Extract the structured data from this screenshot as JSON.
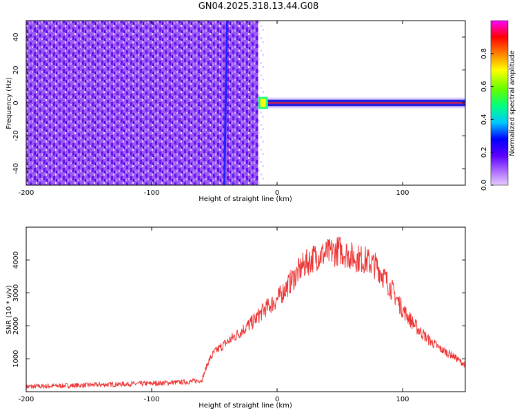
{
  "title": "GN04.2025.318.13.44.G08",
  "colors": {
    "spectrogram_bg": "#8b3cf0",
    "snr_line": "#ee3333",
    "ridge": "#2222ff"
  },
  "chart_data": [
    {
      "type": "heatmap",
      "name": "spectrogram",
      "xlabel": "Height of straight line (km)",
      "ylabel": "Frequency (Hz)",
      "xlim": [
        -200,
        150
      ],
      "ylim": [
        -50,
        50
      ],
      "xticks": [
        -200,
        -100,
        0,
        100
      ],
      "yticks": [
        -40,
        -20,
        0,
        20,
        40
      ],
      "colorbar": {
        "label": "Normalized spectral amplitude",
        "range": [
          0.0,
          1.0
        ],
        "ticks": [
          "0.0",
          "0.2",
          "0.4",
          "0.6",
          "0.8"
        ],
        "colormap": "purple-blue-cyan-green-yellow-red-magenta"
      },
      "noise_region_x": [
        -200,
        -15
      ],
      "signal_band_hz": [
        -2,
        2
      ],
      "signal_region_x": [
        -15,
        150
      ]
    },
    {
      "type": "line",
      "name": "snr",
      "xlabel": "Height of straight line (km)",
      "ylabel": "SNR (10 * v/v)",
      "xlim": [
        -200,
        150
      ],
      "ylim": [
        0,
        5000
      ],
      "xticks": [
        -200,
        -100,
        0,
        100
      ],
      "yticks": [
        1000,
        2000,
        3000,
        4000
      ],
      "x": [
        -200,
        -150,
        -100,
        -70,
        -60,
        -55,
        -50,
        -40,
        -30,
        -20,
        -10,
        0,
        10,
        20,
        30,
        40,
        50,
        60,
        70,
        80,
        90,
        100,
        110,
        120,
        130,
        140,
        150
      ],
      "y": [
        150,
        200,
        250,
        300,
        350,
        900,
        1200,
        1500,
        1800,
        2100,
        2500,
        2800,
        3300,
        3800,
        4100,
        4200,
        4300,
        4100,
        4000,
        3800,
        3200,
        2500,
        2000,
        1600,
        1300,
        1100,
        800
      ]
    }
  ]
}
